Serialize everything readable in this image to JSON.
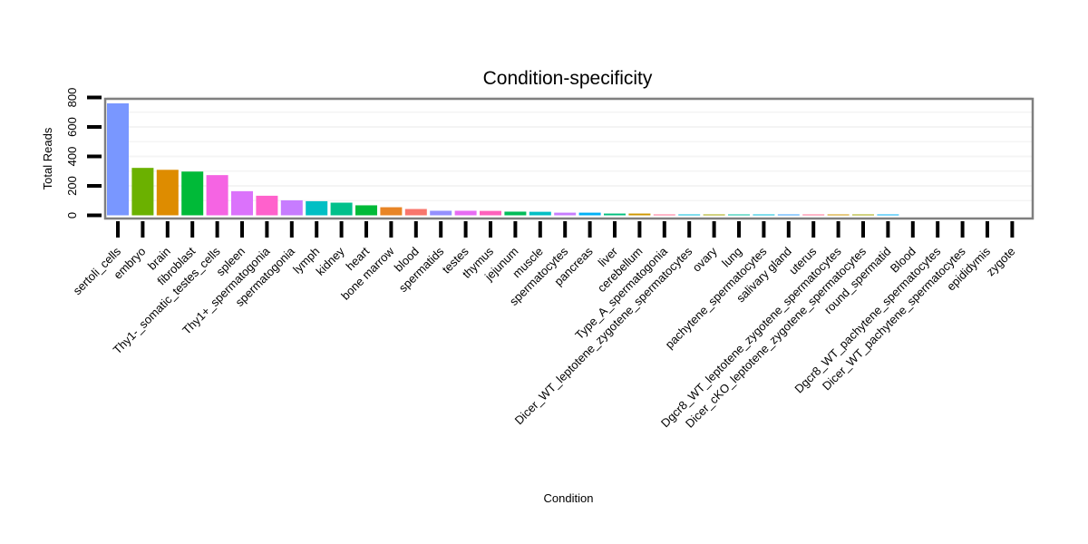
{
  "chart_data": {
    "type": "bar",
    "title": "Condition-specificity",
    "xlabel": "Condition",
    "ylabel": "Total Reads",
    "ylim": [
      0,
      820
    ],
    "yticks": [
      0,
      200,
      400,
      600,
      800
    ],
    "grid": true,
    "legend": "none",
    "categories": [
      "sertoli_cells",
      "embryo",
      "brain",
      "fibroblast",
      "Thy1-_somatic_testes_cells",
      "spleen",
      "Thy1+_spermatogonia",
      "spermatogonia",
      "lymph",
      "kidney",
      "heart",
      "bone marrow",
      "blood",
      "spermatids",
      "testes",
      "thymus",
      "jejunum",
      "muscle",
      "spermatocytes",
      "pancreas",
      "liver",
      "cerebellum",
      "Type_A_spermatogonia",
      "Dicer_WT_leptotene_zygotene_spermatocytes",
      "ovary",
      "lung",
      "pachytene_spermatocytes",
      "salivary gland",
      "uterus",
      "Dgcr8_WT_leptotene_zygotene_spermatocytes",
      "Dicer_cKO_leptotene_zygotene_spermatocytes",
      "round_spermatid",
      "Blood",
      "Dgcr8_WT_pachytene_spermatocytes",
      "Dicer_WT_pachytene_spermatocytes",
      "epididymis",
      "zygote"
    ],
    "values": [
      760,
      322,
      309,
      297,
      273,
      164,
      133,
      102,
      96,
      86,
      68,
      55,
      43,
      31,
      31,
      30,
      25,
      24,
      18,
      18,
      12,
      12,
      6,
      4,
      3,
      3,
      3,
      3,
      3,
      3,
      3,
      3,
      0,
      0,
      0,
      0,
      0
    ],
    "colors": [
      "#7997FF",
      "#6BB100",
      "#DE8C00",
      "#00BA38",
      "#F564E3",
      "#DB72FB",
      "#FF61CC",
      "#C77CFF",
      "#00BFC4",
      "#00C08B",
      "#00BA38",
      "#E88526",
      "#F8766D",
      "#9590FF",
      "#E76BF3",
      "#FF62BC",
      "#00BC59",
      "#00BFC4",
      "#C77CFF",
      "#00B0F6",
      "#00BF7D",
      "#CD9600",
      "#FF6C91",
      "#00BCD8",
      "#A3A500",
      "#00C1A3",
      "#00BCD8",
      "#35A2FF",
      "#FF6C91",
      "#CD9600",
      "#A3A500",
      "#00B0F6",
      "#F8766D",
      "#00BA38",
      "#619CFF",
      "#E76BF3",
      "#00BFC4"
    ]
  }
}
